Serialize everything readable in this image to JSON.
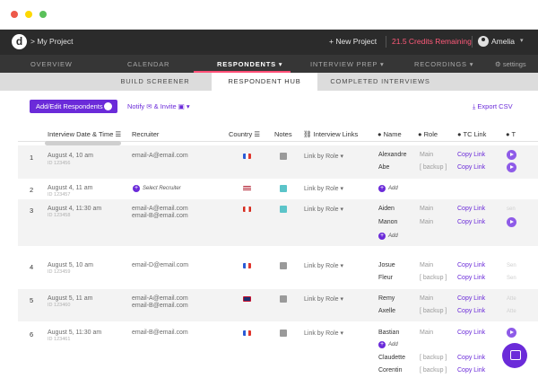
{
  "topbar": {
    "project": "My Project",
    "new_project": "+ New Project",
    "credits": "21.5 Credits Remaining",
    "user": "Amelia"
  },
  "main_nav": {
    "items": [
      "OVERVIEW",
      "CALENDAR",
      "RESPONDENTS ▾",
      "INTERVIEW PREP ▾",
      "RECORDINGS ▾",
      "settings"
    ],
    "active": "RESPONDENTS ▾"
  },
  "sub_nav": {
    "tabs": [
      "BUILD SCREENER",
      "RESPONDENT HUB",
      "COMPLETED INTERVIEWS"
    ],
    "active": "RESPONDENT HUB"
  },
  "toolbar": {
    "add_edit": "Add/Edit Respondents",
    "notify": "Notify",
    "invite": "& Invite",
    "export": "Export CSV"
  },
  "table": {
    "headers": {
      "date": "Interview Date & Time",
      "recruiter": "Recruiter",
      "country": "Country",
      "notes": "Notes",
      "links": "Interview Links",
      "name": "Name",
      "role": "Role",
      "tc": "TC Link"
    },
    "rows": [
      {
        "num": "1",
        "date": "August 4, 10 am",
        "id": "ID 123456",
        "emails": [
          "email-A@email.com"
        ],
        "country_color": "#2b5bd6",
        "link": "Link by Role",
        "people": [
          {
            "name": "Alexandre",
            "role": "Main",
            "link": "Copy Link"
          },
          {
            "name": "Abe",
            "role": "[ backup ]",
            "link": "Copy Link"
          }
        ]
      },
      {
        "num": "2",
        "date": "August 4, 11 am",
        "id": "ID 123457",
        "select_recruiter": "Select Recruiter",
        "country_color": "#b22234",
        "link": "Link by Role",
        "add": "Add"
      },
      {
        "num": "3",
        "date": "August 4, 11:30 am",
        "id": "ID 123458",
        "emails": [
          "email-A@email.com",
          "email-B@email.com"
        ],
        "country_color": "#d52b1e",
        "link": "Link by Role",
        "people": [
          {
            "name": "Aiden",
            "role": "Main",
            "link": "Copy Link"
          },
          {
            "name": "Manon",
            "role": "Main",
            "link": "Copy Link"
          }
        ],
        "add": "Add"
      },
      {
        "num": "4",
        "date": "August 5, 10 am",
        "id": "ID 123459",
        "emails": [
          "email-D@email.com"
        ],
        "country_color": "#2b5bd6",
        "link": "Link by Role",
        "people": [
          {
            "name": "Josue",
            "role": "Main",
            "link": "Copy Link"
          },
          {
            "name": "Fleur",
            "role": "[ backup ]",
            "link": "Copy Link"
          }
        ]
      },
      {
        "num": "5",
        "date": "August 5, 11 am",
        "id": "ID 123460",
        "emails": [
          "email-A@email.com",
          "email-B@email.com"
        ],
        "country_color": "#1f2f6e",
        "link": "Link by Role",
        "people": [
          {
            "name": "Remy",
            "role": "Main",
            "link": "Copy Link"
          },
          {
            "name": "Axelle",
            "role": "[ backup ]",
            "link": "Copy Link"
          }
        ]
      },
      {
        "num": "6",
        "date": "August 5, 11:30 am",
        "id": "ID 123461",
        "emails": [
          "email-B@email.com"
        ],
        "country_color": "#2b5bd6",
        "link": "Link by Role",
        "people": [
          {
            "name": "Bastian",
            "role": "Main",
            "link": "Copy Link"
          },
          {
            "name": "Claudette",
            "role": "[ backup ]",
            "link": "Copy Link"
          },
          {
            "name": "Corentin",
            "role": "[ backup ]",
            "link": "Copy Link"
          }
        ],
        "add": "Add"
      }
    ]
  },
  "colors": {
    "accent": "#6b2bd9",
    "credits": "#ff5a7a",
    "nav_underline": "#ff4f77"
  }
}
